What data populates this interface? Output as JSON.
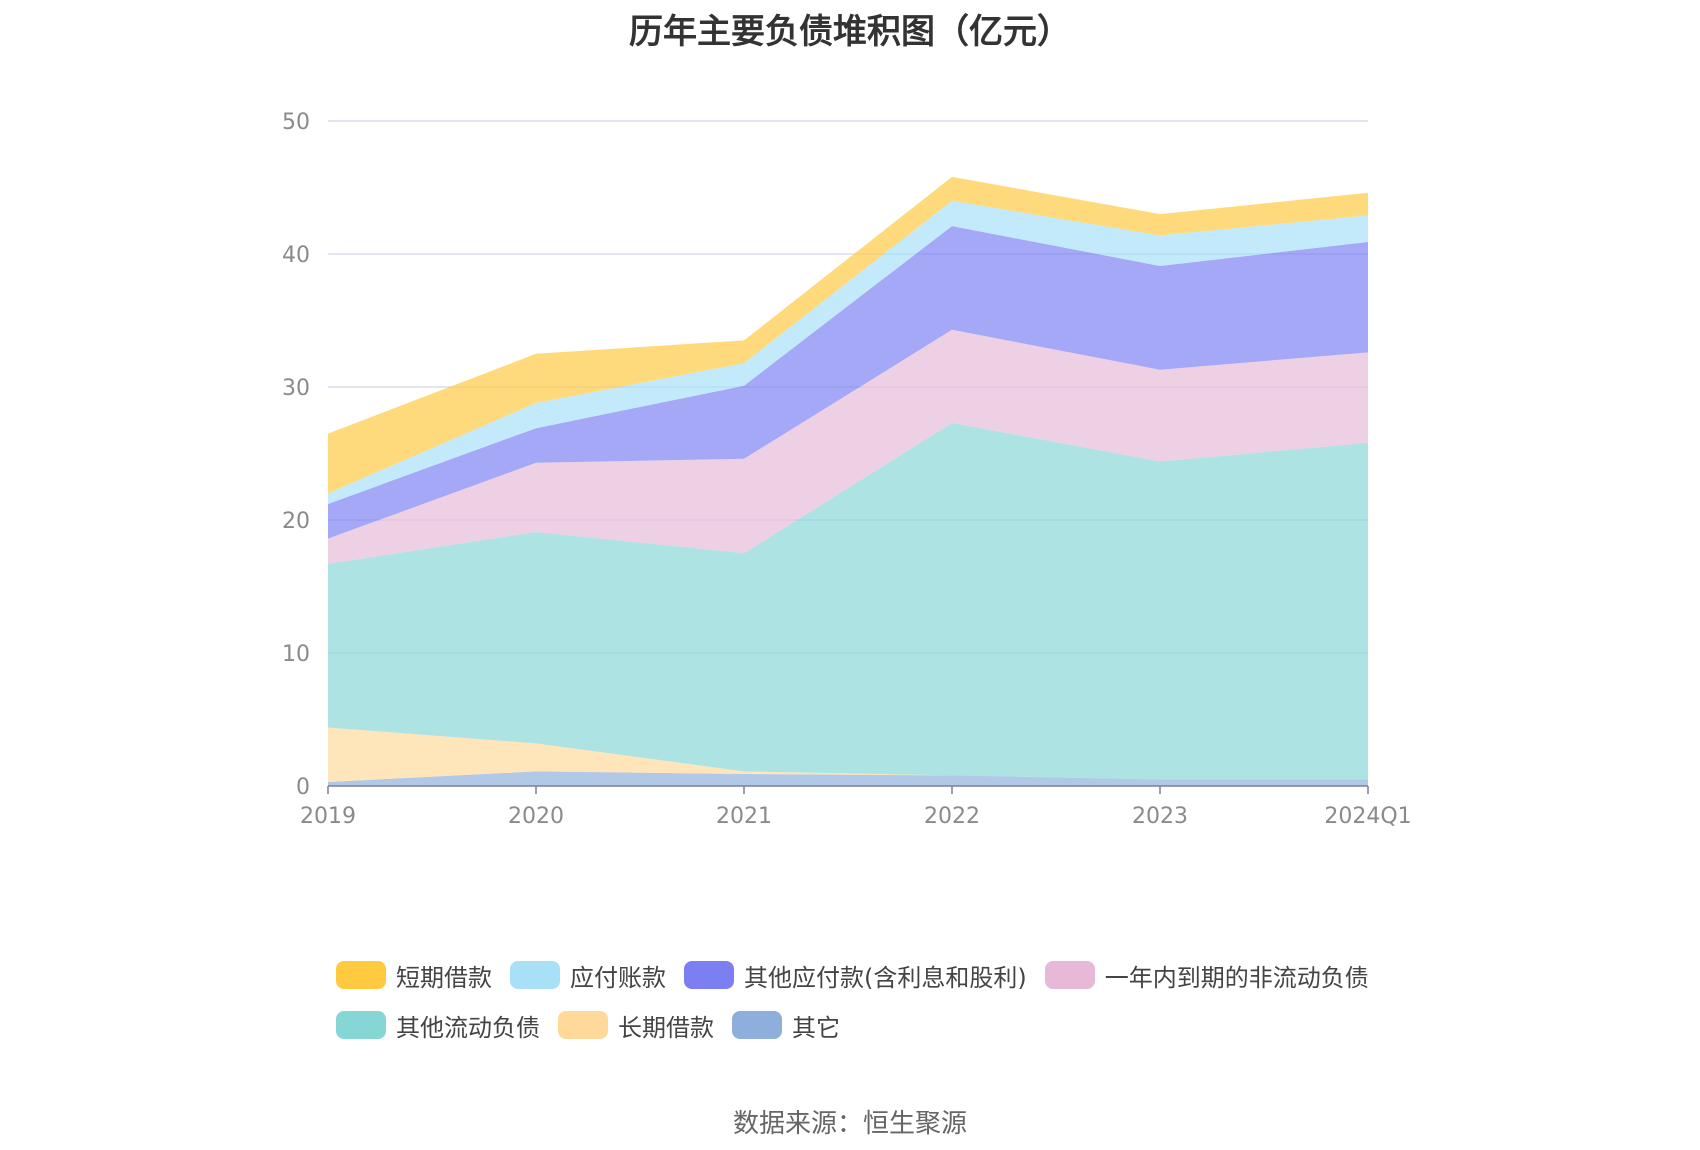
{
  "title": "历年主要负债堆积图（亿元）",
  "source": "数据来源：恒生聚源",
  "chart_data": {
    "type": "area",
    "stacked": true,
    "categories": [
      "2019",
      "2020",
      "2021",
      "2022",
      "2023",
      "2024Q1"
    ],
    "ylim": [
      0,
      50
    ],
    "yticks": [
      0,
      10,
      20,
      30,
      40,
      50
    ],
    "grid": true,
    "legend_position": "bottom",
    "series": [
      {
        "name": "其它",
        "color": "#8eaedb",
        "values": [
          0.3,
          1.1,
          0.9,
          0.8,
          0.5,
          0.5
        ]
      },
      {
        "name": "长期借款",
        "color": "#ffd99a",
        "values": [
          4.1,
          2.1,
          0.2,
          0.0,
          0.0,
          0.0
        ]
      },
      {
        "name": "其他流动负债",
        "color": "#86d6d6",
        "values": [
          12.3,
          15.9,
          16.4,
          26.5,
          23.9,
          25.3
        ]
      },
      {
        "name": "一年内到期的非流动负债",
        "color": "#e6b9d9",
        "values": [
          1.9,
          5.2,
          7.1,
          7.0,
          6.9,
          6.8
        ]
      },
      {
        "name": "其他应付款(含利息和股利)",
        "color": "#7b7ff2",
        "values": [
          2.6,
          2.6,
          5.5,
          7.8,
          7.8,
          8.3
        ]
      },
      {
        "name": "应付账款",
        "color": "#a7e0f7",
        "values": [
          0.8,
          1.9,
          1.7,
          1.9,
          2.3,
          2.0
        ]
      },
      {
        "name": "短期借款",
        "color": "#ffc940",
        "values": [
          4.5,
          3.7,
          1.7,
          1.8,
          1.6,
          1.7
        ]
      }
    ]
  },
  "legend": {
    "rows": [
      [
        {
          "label": "短期借款",
          "color": "#ffc940"
        },
        {
          "label": "应付账款",
          "color": "#a7e0f7"
        },
        {
          "label": "其他应付款(含利息和股利)",
          "color": "#7b7ff2"
        },
        {
          "label": "一年内到期的非流动负债",
          "color": "#e6b9d9"
        }
      ],
      [
        {
          "label": "其他流动负债",
          "color": "#86d6d6"
        },
        {
          "label": "长期借款",
          "color": "#ffd99a"
        },
        {
          "label": "其它",
          "color": "#8eaedb"
        }
      ]
    ]
  }
}
